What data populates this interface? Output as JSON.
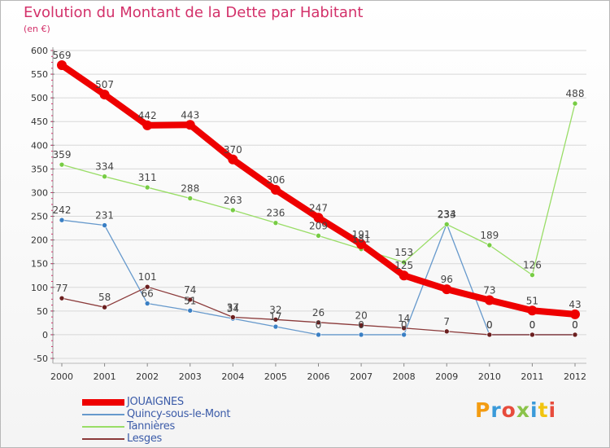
{
  "title": "Evolution du Montant de la Dette par Habitant",
  "subtitle": "(en €)",
  "logo_text": "Proxiti",
  "colors": {
    "title": "#d3316a",
    "axis_text": "#333333",
    "legend_text": "#3b5ba8",
    "grid": "#d8d8d8",
    "tick": "#d3316a"
  },
  "chart_data": {
    "type": "line",
    "x": [
      "2000",
      "2001",
      "2002",
      "2003",
      "2004",
      "2005",
      "2006",
      "2007",
      "2008",
      "2009",
      "2010",
      "2011",
      "2012"
    ],
    "ylim": [
      -50,
      600
    ],
    "yticks": [
      -50,
      0,
      50,
      100,
      150,
      200,
      250,
      300,
      350,
      400,
      450,
      500,
      550,
      600
    ],
    "grid": true,
    "legend_position": "bottom-left",
    "series": [
      {
        "name": "JOUAIGNES",
        "color": "#ee0000",
        "marker": "#ee0000",
        "width": 8,
        "values": [
          569,
          507,
          442,
          443,
          370,
          306,
          247,
          191,
          125,
          96,
          73,
          51,
          43
        ]
      },
      {
        "name": "Quincy-sous-le-Mont",
        "color": "#6699cc",
        "marker": "#3a7fc4",
        "width": 1.3,
        "values": [
          242,
          231,
          66,
          51,
          34,
          17,
          0,
          0,
          0,
          234,
          0,
          0,
          0
        ]
      },
      {
        "name": "Tannières",
        "color": "#99dd66",
        "marker": "#77cc44",
        "width": 1.3,
        "values": [
          359,
          334,
          311,
          288,
          263,
          236,
          209,
          181,
          153,
          233,
          189,
          126,
          488
        ]
      },
      {
        "name": "Lesges",
        "color": "#8b3a3a",
        "marker": "#6b1f1f",
        "width": 1.3,
        "values": [
          77,
          58,
          101,
          74,
          37,
          32,
          26,
          20,
          14,
          7,
          0,
          0,
          0
        ]
      }
    ]
  }
}
